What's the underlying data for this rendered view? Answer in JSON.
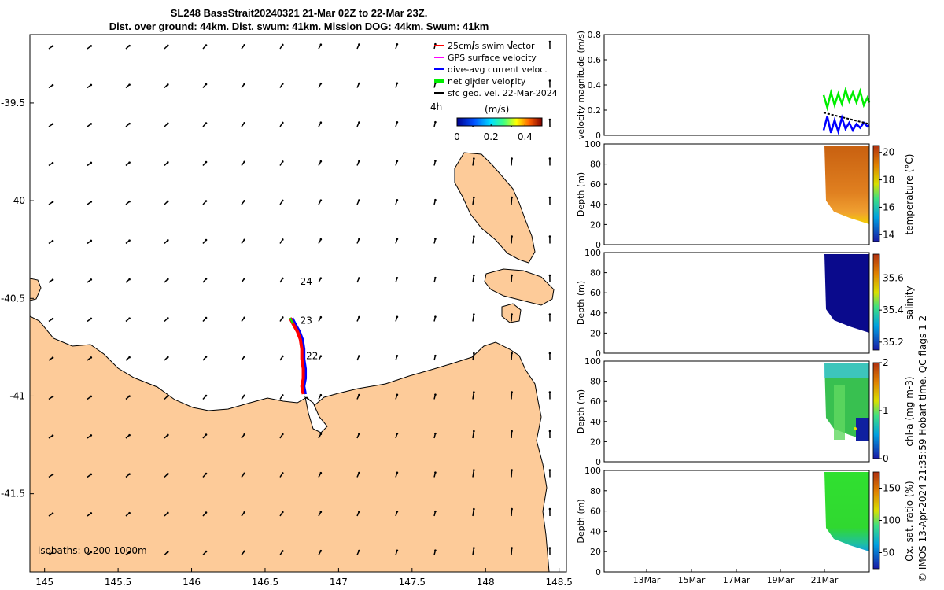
{
  "title_line1": "SL248 BassStrait20240321 21-Mar 02Z to 22-Mar 23Z.",
  "title_line2": "Dist. over ground: 44km. Dist. swum: 41km. Mission DOG: 44km. Swum: 41km",
  "copyright": "© IMOS 13-Apr-2024 21:35:59 Hobart time. QC flags 1  2",
  "colors": {
    "land": "#FDCB99",
    "swim": "#ff0000",
    "gps": "#ff00ff",
    "dive": "#0000ff",
    "net": "#00ee00",
    "sfc": "#000000"
  },
  "map": {
    "type": "map",
    "xlim": [
      144.9,
      148.55
    ],
    "ylim": [
      -41.9,
      -39.15
    ],
    "xticks": [
      "145",
      "145.5",
      "146",
      "146.5",
      "147",
      "147.5",
      "148",
      "148.5"
    ],
    "yticks": [
      "-39.5",
      "-40",
      "-40.5",
      "-41",
      "-41.5"
    ],
    "legend_title": "(m/s)",
    "legend": [
      {
        "key": "swim",
        "label": "25cm/s swim vector"
      },
      {
        "key": "gps",
        "label": "GPS surface velocity"
      },
      {
        "key": "dive",
        "label": "dive-avg current veloc."
      },
      {
        "key": "net",
        "label": "net glider velocity"
      },
      {
        "key": "sfc",
        "label": "sfc geo. vel. 22-Mar-2024"
      }
    ],
    "time_label": "4h",
    "colorbar_ticks": [
      "0",
      "0.2",
      "0.4"
    ],
    "colorbar_range": [
      0,
      0.5
    ],
    "isobaths_label": "isobaths: 0   200  1000m",
    "track": [
      [
        146.67,
        -40.6
      ],
      [
        146.69,
        -40.63
      ],
      [
        146.72,
        -40.67
      ],
      [
        146.74,
        -40.71
      ],
      [
        146.75,
        -40.76
      ],
      [
        146.75,
        -40.81
      ],
      [
        146.76,
        -40.86
      ],
      [
        146.76,
        -40.91
      ],
      [
        146.75,
        -40.95
      ],
      [
        146.76,
        -40.99
      ]
    ],
    "day_labels": [
      {
        "label": "24",
        "lon": 146.78,
        "lat": -40.43
      },
      {
        "label": "23",
        "lon": 146.78,
        "lat": -40.63
      },
      {
        "label": "22",
        "lon": 146.82,
        "lat": -40.81
      }
    ]
  },
  "chart_data": [
    {
      "type": "line",
      "ylabel": "velocity magnitude (m/s)",
      "ylim": [
        0,
        0.8
      ],
      "yticks": [
        "0",
        "0.2",
        "0.4",
        "0.6",
        "0.8"
      ],
      "series": [
        {
          "key": "net",
          "x": [
            0.0,
            0.08,
            0.16,
            0.24,
            0.32,
            0.4,
            0.48,
            0.56,
            0.64,
            0.72,
            0.8,
            0.88,
            0.96,
            1.0
          ],
          "values": [
            0.32,
            0.22,
            0.34,
            0.24,
            0.33,
            0.25,
            0.36,
            0.27,
            0.34,
            0.26,
            0.35,
            0.24,
            0.3,
            0.26
          ]
        },
        {
          "key": "dive",
          "x": [
            0.0,
            0.08,
            0.16,
            0.24,
            0.32,
            0.4,
            0.48,
            0.56,
            0.64,
            0.72,
            0.8,
            0.88,
            0.96,
            1.0
          ],
          "values": [
            0.04,
            0.15,
            0.02,
            0.12,
            0.03,
            0.14,
            0.05,
            0.1,
            0.04,
            0.09,
            0.06,
            0.1,
            0.07,
            0.08
          ]
        },
        {
          "key": "sfc",
          "x": [
            0.0,
            1.0
          ],
          "values": [
            0.18,
            0.09
          ]
        }
      ]
    },
    {
      "type": "heatmap",
      "ylabel": "Depth (m)",
      "cblabel": "temperature (°C)",
      "ylim": [
        100,
        0
      ],
      "yticks": [
        "0",
        "20",
        "40",
        "60",
        "80",
        "100"
      ],
      "cbticks": [
        "14",
        "16",
        "18",
        "20"
      ],
      "cbrange": [
        13.5,
        20.5
      ]
    },
    {
      "type": "heatmap",
      "ylabel": "Depth (m)",
      "cblabel": "salinity",
      "ylim": [
        100,
        0
      ],
      "yticks": [
        "0",
        "20",
        "40",
        "60",
        "80",
        "100"
      ],
      "cbticks": [
        "35.2",
        "35.4",
        "35.6"
      ],
      "cbrange": [
        35.15,
        35.75
      ]
    },
    {
      "type": "heatmap",
      "ylabel": "Depth (m)",
      "cblabel": "chl-a (mg m-3)",
      "ylim": [
        100,
        0
      ],
      "yticks": [
        "0",
        "20",
        "40",
        "60",
        "80",
        "100"
      ],
      "cbticks": [
        "0",
        "1",
        "2"
      ],
      "cbrange": [
        0,
        2
      ]
    },
    {
      "type": "heatmap",
      "ylabel": "Depth (m)",
      "cblabel": "Ox. sat. ratio (%)",
      "ylim": [
        100,
        0
      ],
      "yticks": [
        "0",
        "20",
        "40",
        "60",
        "80",
        "100"
      ],
      "cbticks": [
        "50",
        "100",
        "150"
      ],
      "cbrange": [
        25,
        175
      ]
    }
  ],
  "time_axis": {
    "ticks": [
      "13Mar",
      "15Mar",
      "17Mar",
      "19Mar",
      "21Mar"
    ]
  }
}
